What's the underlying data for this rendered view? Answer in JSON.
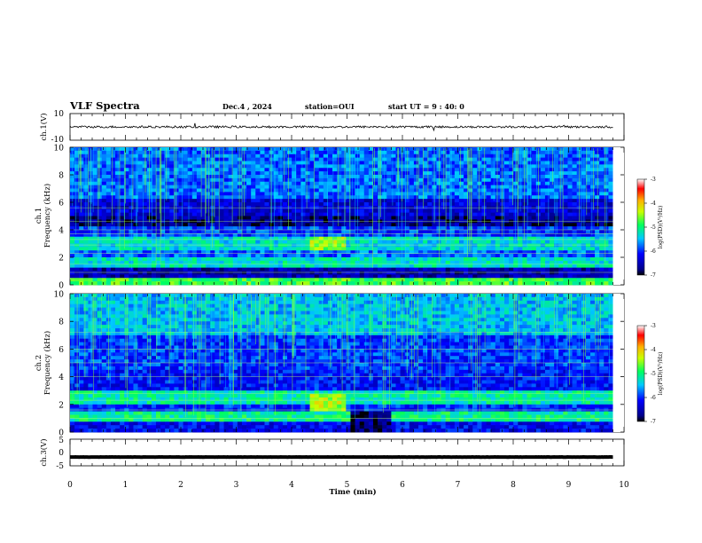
{
  "header": {
    "title": "VLF Spectra",
    "date": "Dec.4 , 2024",
    "station": "station=OUI",
    "start_ut": "start UT = 9 : 40: 0"
  },
  "chart_data": [
    {
      "panel": "ch1-waveform",
      "type": "line",
      "ylabel": "ch.1(V)",
      "ylim": [
        -10,
        10
      ],
      "y_ticks": [
        "10",
        "-10"
      ],
      "trace_level": 0
    },
    {
      "panel": "ch1-spectrogram",
      "type": "heatmap",
      "ylabel_line1": "ch.1",
      "ylabel_line2": "Frequency (kHz)",
      "ylim": [
        0,
        10
      ],
      "y_ticks": [
        "10",
        "8",
        "6",
        "4",
        "2",
        "0"
      ],
      "colorbar": {
        "label": "log(PSD)(V²/Hz)",
        "range": [
          -7,
          -3
        ],
        "ticks": [
          "-3",
          "-4",
          "-5",
          "-6",
          "-7"
        ]
      }
    },
    {
      "panel": "ch2-spectrogram",
      "type": "heatmap",
      "ylabel_line1": "ch.2",
      "ylabel_line2": "Frequency (kHz)",
      "ylim": [
        0,
        10
      ],
      "y_ticks": [
        "10",
        "8",
        "6",
        "4",
        "2",
        "0"
      ],
      "colorbar": {
        "label": "log(PSD)(V²/Hz)",
        "range": [
          -7,
          -3
        ],
        "ticks": [
          "-3",
          "-4",
          "-5",
          "-6",
          "-7"
        ]
      }
    },
    {
      "panel": "ch3-waveform",
      "type": "line",
      "ylabel": "ch.3(V)",
      "ylim": [
        -5,
        5
      ],
      "y_ticks": [
        "5",
        "0",
        "-5"
      ],
      "trace_level": -1.7
    }
  ],
  "x_axis": {
    "label": "Time (min)",
    "range": [
      0,
      10
    ],
    "ticks": [
      "0",
      "1",
      "2",
      "3",
      "4",
      "5",
      "6",
      "7",
      "8",
      "9",
      "10"
    ],
    "data_end": 9.8
  }
}
